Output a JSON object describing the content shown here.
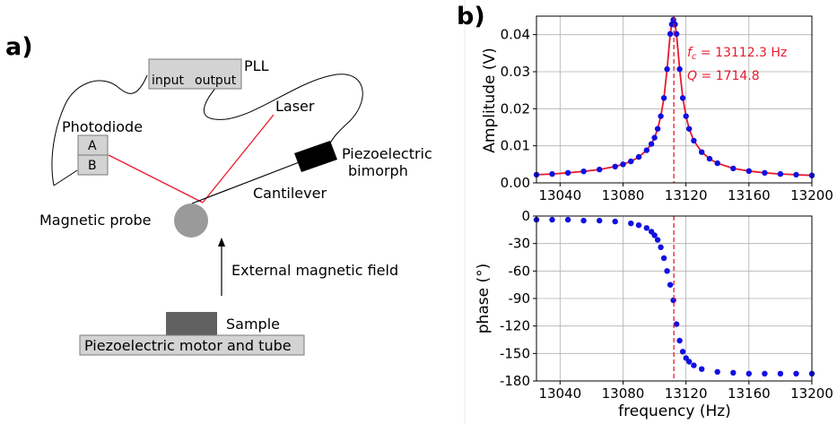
{
  "panel_a": {
    "label": "a)",
    "pll": {
      "title": "PLL",
      "input": "input",
      "output": "output"
    },
    "laser": "Laser",
    "photodiode": {
      "title": "Photodiode",
      "segment_a": "A",
      "segment_b": "B"
    },
    "piezo_bimorph": [
      "Piezoelectric",
      "bimorph"
    ],
    "cantilever": "Cantilever",
    "magnetic_probe": "Magnetic probe",
    "external_field": "External magnetic field",
    "sample": "Sample",
    "motor": "Piezoelectric motor and tube",
    "colors": {
      "laser": "#e8192c",
      "box_fill": "#d3d3d3",
      "probe": "#9a9a9a",
      "sample": "#616161",
      "bimorph": "#000000"
    }
  },
  "panel_b": {
    "label": "b)"
  },
  "chart_data": [
    {
      "type": "scatter",
      "subplot": "amplitude",
      "title": "",
      "xlabel": "",
      "ylabel": "Amplitude (V)",
      "xlim": [
        13025,
        13200
      ],
      "ylim": [
        0.0,
        0.045
      ],
      "x_ticks": [
        13040,
        13080,
        13120,
        13160,
        13200
      ],
      "y_ticks": [
        0.0,
        0.01,
        0.02,
        0.03,
        0.04
      ],
      "y_tick_labels": [
        "0.00",
        "0.01",
        "0.02",
        "0.03",
        "0.04"
      ],
      "grid": true,
      "series": [
        {
          "kind": "points",
          "color": "#1010e0",
          "x": [
            13025,
            13035,
            13045,
            13055,
            13065,
            13075,
            13080,
            13085,
            13090,
            13095,
            13098,
            13100,
            13102,
            13104,
            13106,
            13108,
            13110,
            13111,
            13112,
            13113,
            13114,
            13116,
            13118,
            13120,
            13122,
            13125,
            13130,
            13135,
            13140,
            13150,
            13160,
            13170,
            13180,
            13190,
            13200
          ],
          "y": [
            0.0022,
            0.0024,
            0.0027,
            0.0031,
            0.0036,
            0.0044,
            0.005,
            0.0058,
            0.007,
            0.0088,
            0.0105,
            0.0122,
            0.0146,
            0.018,
            0.0229,
            0.0307,
            0.0402,
            0.0428,
            0.044,
            0.0428,
            0.0402,
            0.0307,
            0.0229,
            0.018,
            0.0146,
            0.0114,
            0.0083,
            0.0065,
            0.0053,
            0.0039,
            0.0032,
            0.0027,
            0.0024,
            0.0022,
            0.002
          ]
        },
        {
          "kind": "fit",
          "color": "#e8192c",
          "x": [
            13025,
            13035,
            13045,
            13055,
            13065,
            13075,
            13080,
            13085,
            13090,
            13095,
            13098,
            13100,
            13102,
            13104,
            13106,
            13108,
            13110,
            13111,
            13112,
            13113,
            13114,
            13116,
            13118,
            13120,
            13122,
            13125,
            13130,
            13135,
            13140,
            13150,
            13160,
            13170,
            13180,
            13190,
            13200
          ],
          "y": [
            0.0022,
            0.0024,
            0.0027,
            0.0031,
            0.0036,
            0.0044,
            0.005,
            0.0058,
            0.007,
            0.0088,
            0.0105,
            0.0122,
            0.0146,
            0.018,
            0.0229,
            0.0307,
            0.0402,
            0.0428,
            0.044,
            0.0428,
            0.0402,
            0.0307,
            0.0229,
            0.018,
            0.0146,
            0.0114,
            0.0083,
            0.0065,
            0.0053,
            0.0039,
            0.0032,
            0.0027,
            0.0024,
            0.0022,
            0.002
          ]
        }
      ],
      "vline": {
        "x": 13112.3,
        "color": "#e8192c",
        "style": "dashed"
      },
      "annotations": {
        "fc_value": " = 13112.3 Hz",
        "q_value": " = 1714.8"
      }
    },
    {
      "type": "scatter",
      "subplot": "phase",
      "title": "",
      "xlabel": "frequency (Hz)",
      "ylabel": "phase (°)",
      "xlim": [
        13025,
        13200
      ],
      "ylim": [
        -180,
        0
      ],
      "x_ticks": [
        13040,
        13080,
        13120,
        13160,
        13200
      ],
      "y_ticks": [
        0,
        -30,
        -60,
        -90,
        -120,
        -150,
        -180
      ],
      "grid": true,
      "series": [
        {
          "kind": "points",
          "color": "#1010e0",
          "x": [
            13025,
            13035,
            13045,
            13055,
            13065,
            13075,
            13085,
            13090,
            13095,
            13098,
            13100,
            13102,
            13104,
            13106,
            13108,
            13110,
            13112,
            13114,
            13116,
            13118,
            13120,
            13122,
            13125,
            13130,
            13140,
            13150,
            13160,
            13170,
            13180,
            13190,
            13200
          ],
          "y": [
            -4,
            -4,
            -4,
            -5,
            -5,
            -6,
            -8,
            -10,
            -13,
            -17,
            -21,
            -26,
            -34,
            -46,
            -60,
            -75,
            -92,
            -118,
            -136,
            -148,
            -155,
            -159,
            -163,
            -167,
            -170,
            -171,
            -172,
            -172,
            -172,
            -172,
            -172
          ]
        }
      ],
      "vline": {
        "x": 13112.3,
        "color": "#e8192c",
        "style": "dashed"
      }
    }
  ]
}
